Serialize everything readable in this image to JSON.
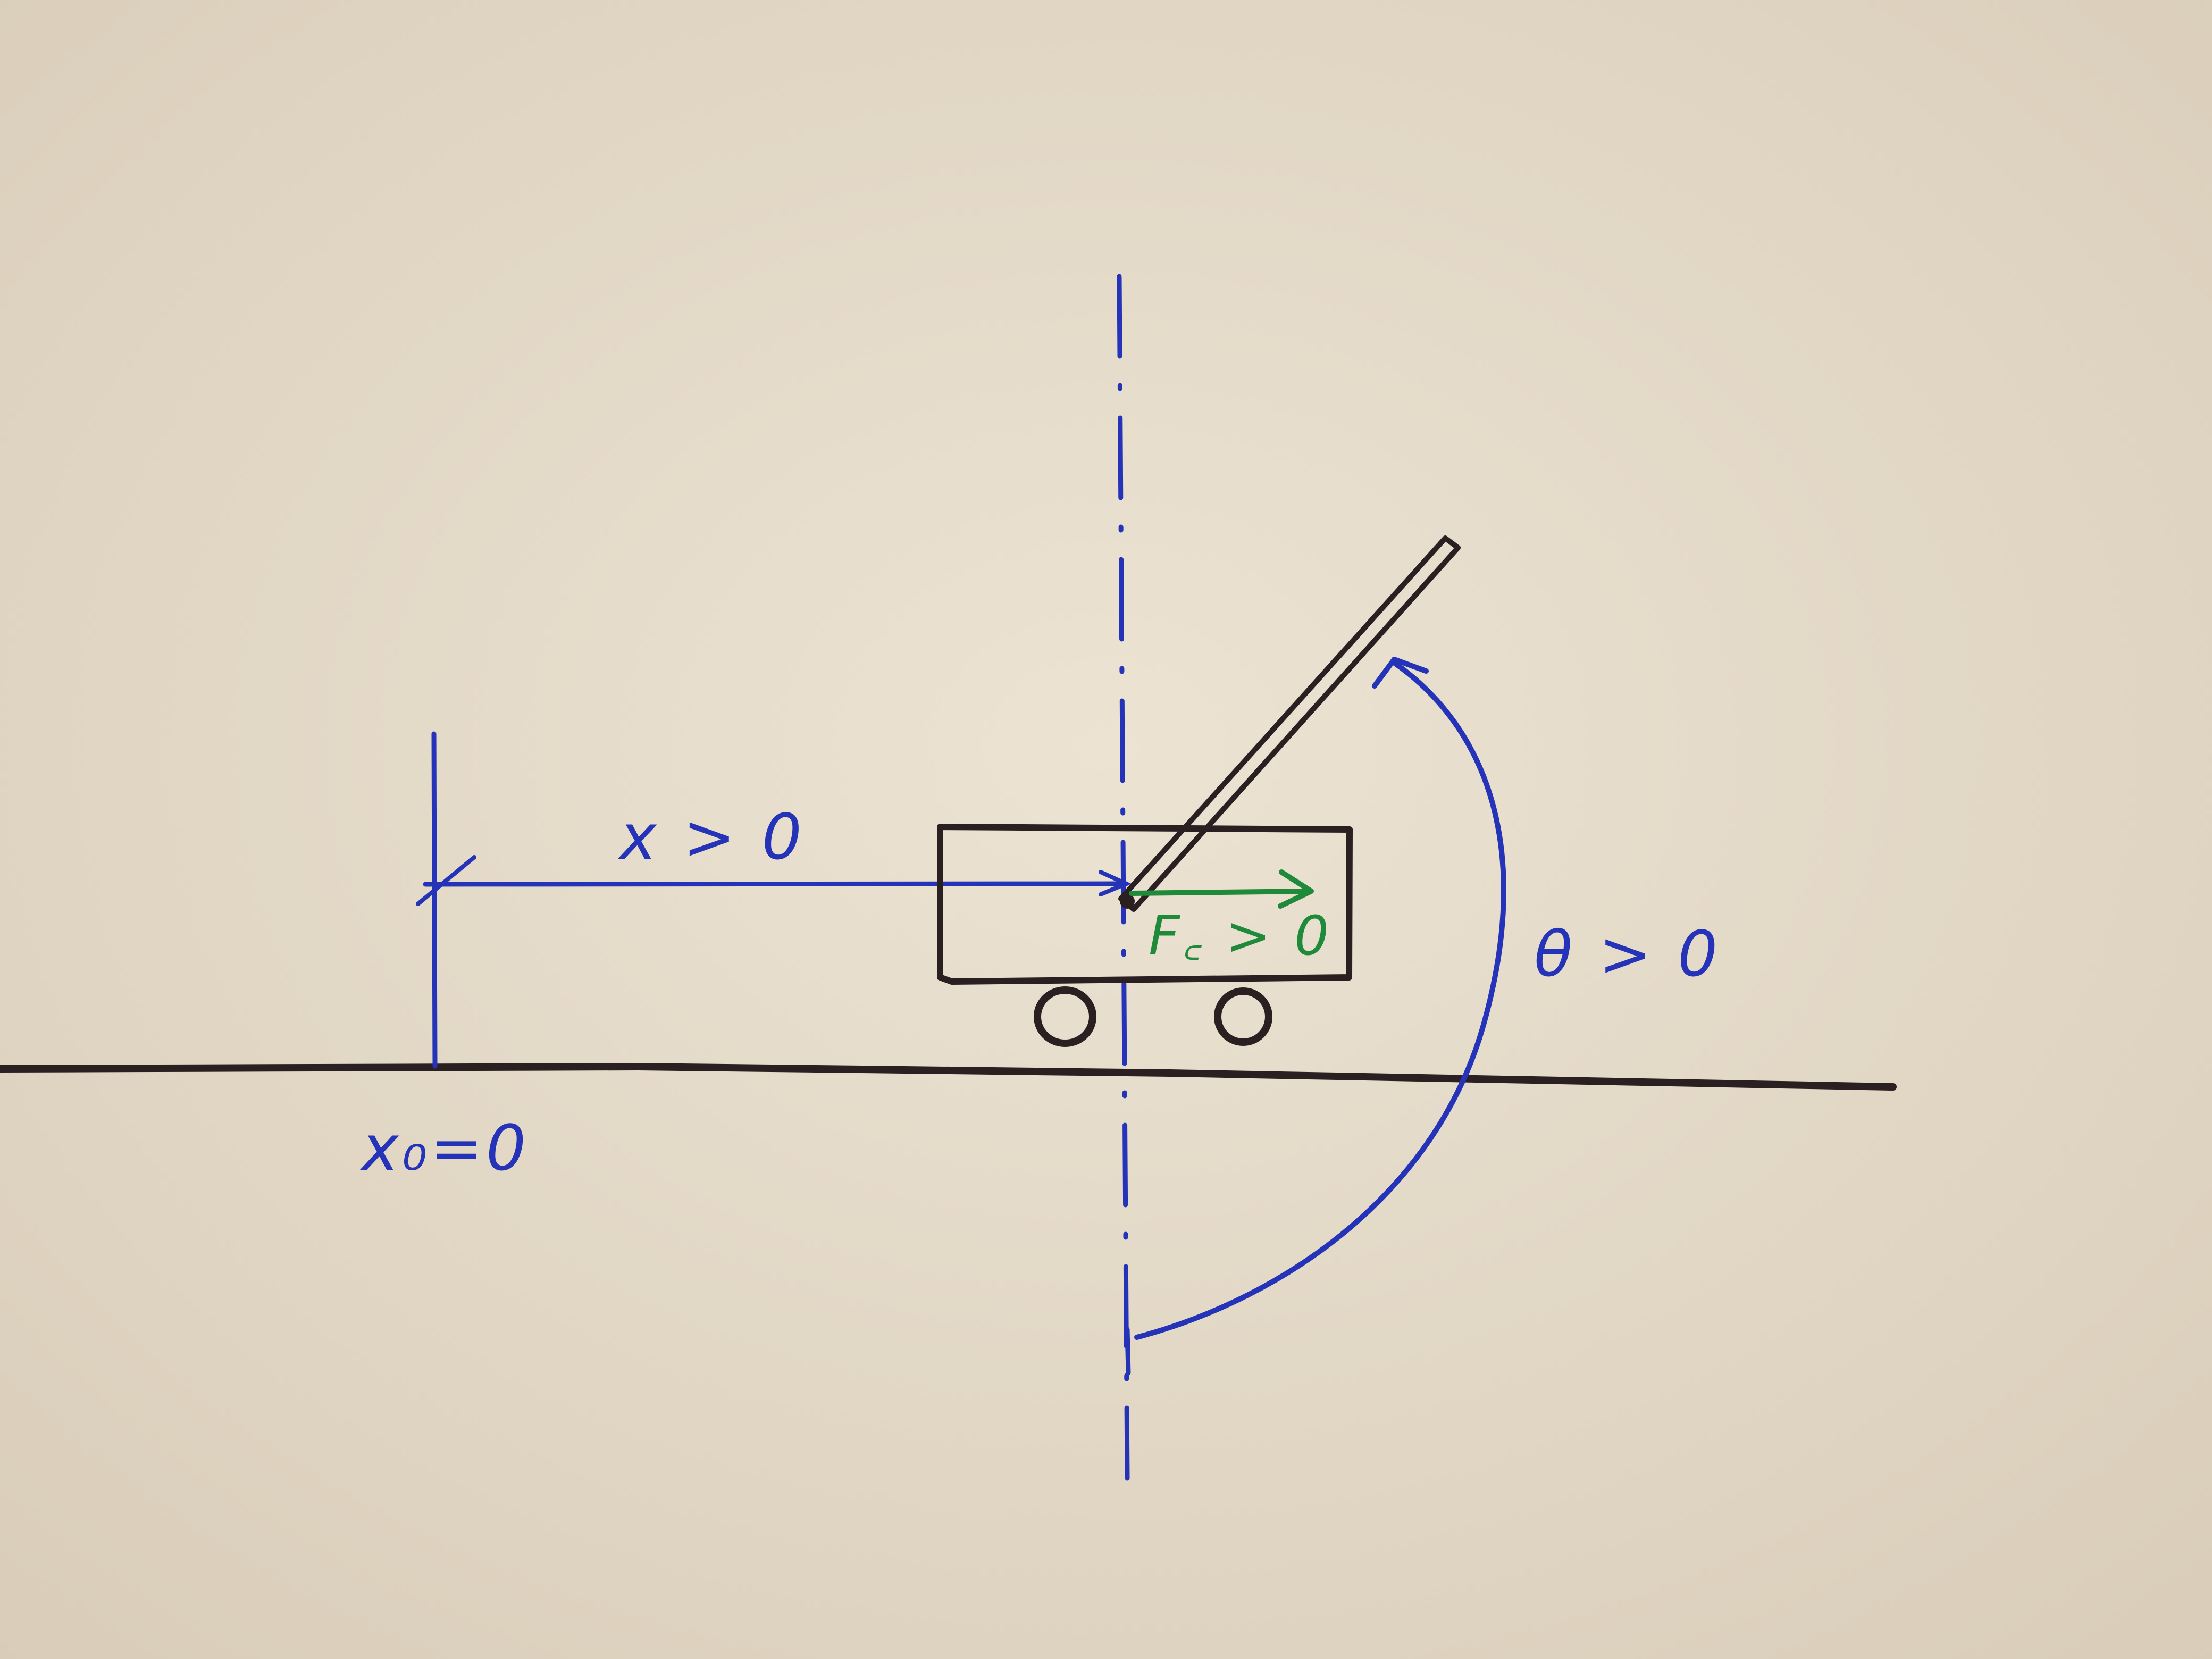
{
  "labels": {
    "x_positive": "x > 0",
    "x0_origin": "x₀=0",
    "force_positive": "F꜀ > 0",
    "theta_positive": "θ > 0"
  },
  "colors": {
    "paper": "#e6dccb",
    "black_ink": "#2a2022",
    "blue_ink": "#2433b8",
    "green_ink": "#1f8a3a"
  }
}
